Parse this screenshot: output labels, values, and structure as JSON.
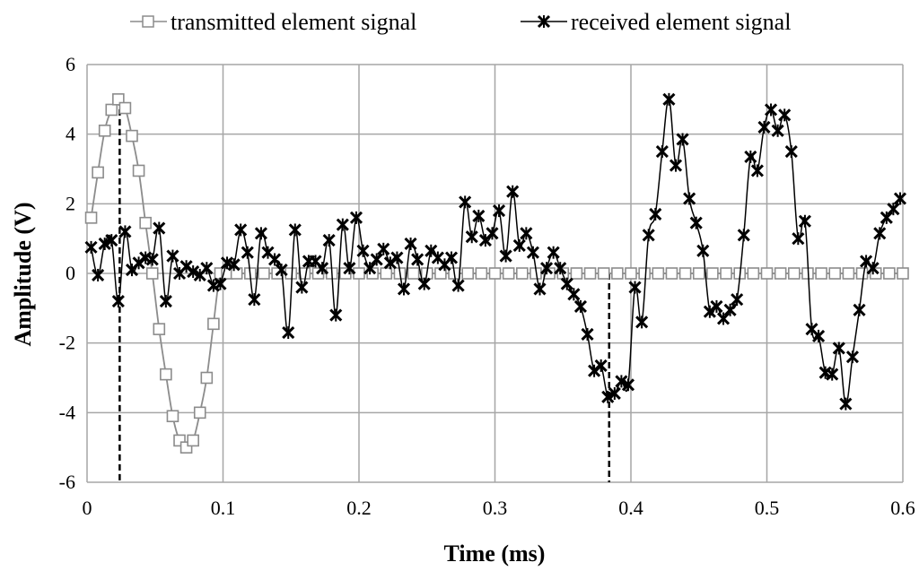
{
  "chart_data": {
    "type": "line",
    "title": "",
    "xlabel": "Time (ms)",
    "ylabel": "Amplitude (V)",
    "xlim": [
      0,
      0.6
    ],
    "ylim": [
      -6,
      6
    ],
    "xticks": [
      "0",
      "0.1",
      "0.2",
      "0.3",
      "0.4",
      "0.5",
      "0.6"
    ],
    "yticks": [
      "6",
      "4",
      "2",
      "0",
      "-2",
      "-4",
      "-6"
    ],
    "grid": true,
    "legend_position": "top",
    "series": [
      {
        "name": "transmitted element signal",
        "marker": "square",
        "color": "#8c8c8c",
        "x": [
          0.003,
          0.008,
          0.013,
          0.018,
          0.023,
          0.028,
          0.033,
          0.038,
          0.043,
          0.048,
          0.053,
          0.058,
          0.063,
          0.068,
          0.073,
          0.078,
          0.083,
          0.088,
          0.093,
          0.098,
          0.103,
          0.11,
          0.12,
          0.13,
          0.14,
          0.15,
          0.16,
          0.17,
          0.18,
          0.19,
          0.2,
          0.21,
          0.22,
          0.23,
          0.24,
          0.25,
          0.26,
          0.27,
          0.28,
          0.29,
          0.3,
          0.31,
          0.32,
          0.33,
          0.34,
          0.35,
          0.36,
          0.37,
          0.38,
          0.39,
          0.4,
          0.41,
          0.42,
          0.43,
          0.44,
          0.45,
          0.46,
          0.47,
          0.48,
          0.49,
          0.5,
          0.51,
          0.52,
          0.53,
          0.54,
          0.55,
          0.56,
          0.57,
          0.58,
          0.59,
          0.6
        ],
        "y": [
          1.6,
          2.9,
          4.1,
          4.7,
          5.0,
          4.75,
          3.95,
          2.95,
          1.45,
          0.0,
          -1.6,
          -2.9,
          -4.1,
          -4.8,
          -5.0,
          -4.8,
          -4.0,
          -3.0,
          -1.45,
          0.0,
          0.0,
          0.0,
          0.0,
          0.0,
          0.0,
          0.0,
          0.0,
          0.0,
          0.0,
          0.0,
          0.0,
          0.0,
          0.0,
          0.0,
          0.0,
          0.0,
          0.0,
          0.0,
          0.0,
          0.0,
          0.0,
          0.0,
          0.0,
          0.0,
          0.0,
          0.0,
          0.0,
          0.0,
          0.0,
          0.0,
          0.0,
          0.0,
          0.0,
          0.0,
          0.0,
          0.0,
          0.0,
          0.0,
          0.0,
          0.0,
          0.0,
          0.0,
          0.0,
          0.0,
          0.0,
          0.0,
          0.0,
          0.0,
          0.0,
          0.0,
          0.0
        ]
      },
      {
        "name": "received element signal",
        "marker": "asterisk",
        "color": "#000000",
        "x": [
          0.003,
          0.008,
          0.013,
          0.018,
          0.023,
          0.028,
          0.033,
          0.038,
          0.043,
          0.048,
          0.053,
          0.058,
          0.063,
          0.068,
          0.073,
          0.078,
          0.083,
          0.088,
          0.093,
          0.098,
          0.103,
          0.108,
          0.113,
          0.118,
          0.123,
          0.128,
          0.133,
          0.138,
          0.143,
          0.148,
          0.153,
          0.158,
          0.163,
          0.168,
          0.173,
          0.178,
          0.183,
          0.188,
          0.193,
          0.198,
          0.203,
          0.208,
          0.213,
          0.218,
          0.223,
          0.228,
          0.233,
          0.238,
          0.243,
          0.248,
          0.253,
          0.258,
          0.263,
          0.268,
          0.273,
          0.278,
          0.283,
          0.288,
          0.293,
          0.298,
          0.303,
          0.308,
          0.313,
          0.318,
          0.323,
          0.328,
          0.333,
          0.338,
          0.343,
          0.348,
          0.353,
          0.358,
          0.363,
          0.368,
          0.373,
          0.378,
          0.383,
          0.388,
          0.393,
          0.398,
          0.403,
          0.408,
          0.413,
          0.418,
          0.423,
          0.428,
          0.433,
          0.438,
          0.443,
          0.448,
          0.453,
          0.458,
          0.463,
          0.468,
          0.473,
          0.478,
          0.483,
          0.488,
          0.493,
          0.498,
          0.503,
          0.508,
          0.513,
          0.518,
          0.523,
          0.528,
          0.533,
          0.538,
          0.543,
          0.548,
          0.553,
          0.558,
          0.563,
          0.568,
          0.573,
          0.578,
          0.583,
          0.588,
          0.593,
          0.598
        ],
        "y": [
          0.75,
          -0.05,
          0.85,
          0.95,
          -0.8,
          1.2,
          0.1,
          0.3,
          0.45,
          0.4,
          1.3,
          -0.8,
          0.5,
          0.0,
          0.2,
          0.05,
          -0.05,
          0.15,
          -0.35,
          -0.3,
          0.3,
          0.25,
          1.25,
          0.6,
          -0.75,
          1.15,
          0.6,
          0.4,
          0.1,
          -1.7,
          1.25,
          -0.4,
          0.35,
          0.35,
          0.15,
          0.95,
          -1.2,
          1.4,
          0.15,
          1.6,
          0.65,
          0.15,
          0.4,
          0.7,
          0.3,
          0.45,
          -0.45,
          0.85,
          0.4,
          -0.3,
          0.65,
          0.45,
          0.25,
          0.45,
          -0.35,
          2.05,
          1.05,
          1.65,
          0.95,
          1.15,
          1.8,
          0.5,
          2.35,
          0.8,
          1.15,
          0.6,
          -0.45,
          0.15,
          0.6,
          0.15,
          -0.3,
          -0.6,
          -0.95,
          -1.75,
          -2.8,
          -2.65,
          -3.55,
          -3.45,
          -3.1,
          -3.2,
          -0.4,
          -1.4,
          1.1,
          1.7,
          3.5,
          5.0,
          3.1,
          3.85,
          2.15,
          1.45,
          0.65,
          -1.1,
          -0.95,
          -1.3,
          -1.05,
          -0.75,
          1.1,
          3.35,
          2.95,
          4.2,
          4.7,
          4.1,
          4.55,
          3.5,
          1.0,
          1.5,
          -1.6,
          -1.8,
          -2.85,
          -2.9,
          -2.15,
          -3.75,
          -2.4,
          -1.05,
          0.35,
          0.15,
          1.15,
          1.6,
          1.85,
          2.15
        ]
      }
    ],
    "annotations": [
      {
        "type": "vertical-dashed-line",
        "x": 0.024,
        "y_from": -6,
        "y_to": 5.0
      },
      {
        "type": "vertical-dashed-line",
        "x": 0.384,
        "y_from": -6,
        "y_to": 0.0
      }
    ]
  }
}
